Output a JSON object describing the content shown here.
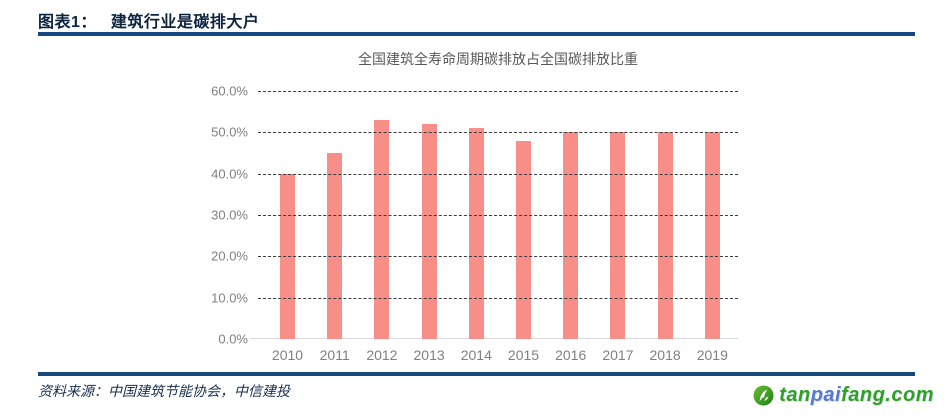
{
  "header": {
    "figure_label": "图表1：",
    "figure_title": "建筑行业是碳排大户"
  },
  "chart_data": {
    "type": "bar",
    "title": "全国建筑全寿命周期碳排放占全国碳排放比重",
    "categories": [
      "2010",
      "2011",
      "2012",
      "2013",
      "2014",
      "2015",
      "2016",
      "2017",
      "2018",
      "2019"
    ],
    "values": [
      40,
      45,
      53,
      52,
      51,
      48,
      50,
      50,
      50,
      50
    ],
    "unit": "%",
    "xlabel": "",
    "ylabel": "",
    "ylim": [
      0,
      60
    ],
    "yticks": [
      0,
      10,
      20,
      30,
      40,
      50,
      60
    ],
    "ytick_labels": [
      "0.0%",
      "10.0%",
      "20.0%",
      "30.0%",
      "40.0%",
      "50.0%",
      "60.0%"
    ],
    "grid": "horizontal-dashed",
    "legend": "none",
    "bar_color": "#f88e88"
  },
  "footer": {
    "source": "资料来源：中国建筑节能协会，中信建投",
    "logo": {
      "part_tan": "tan",
      "part_pai": "pai",
      "part_fang": "fang.com",
      "green": "#2fa023",
      "blue": "#5779cc",
      "icon": "tanpaifang-leaf-icon"
    }
  },
  "colors": {
    "rule": "#17497e",
    "header_text": "#0c2340",
    "axis_text": "#808080",
    "chart_title_text": "#595959"
  }
}
